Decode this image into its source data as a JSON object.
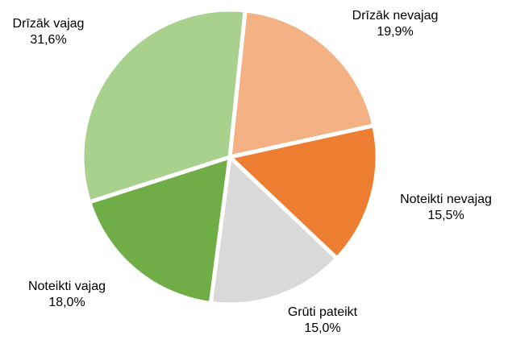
{
  "chart_data": {
    "type": "pie",
    "categories": [
      "Drīzāk nevajag",
      "Noteikti nevajag",
      "Grūti pateikt",
      "Noteikti vajag",
      "Drīzāk vajag"
    ],
    "values": [
      19.9,
      15.5,
      15.0,
      18.0,
      31.6
    ],
    "value_labels": [
      "19,9%",
      "15,5%",
      "15,0%",
      "18,0%",
      "31,6%"
    ],
    "colors": [
      "#f4b183",
      "#ed7d31",
      "#d9d9d9",
      "#70ad47",
      "#a9d18e"
    ]
  }
}
